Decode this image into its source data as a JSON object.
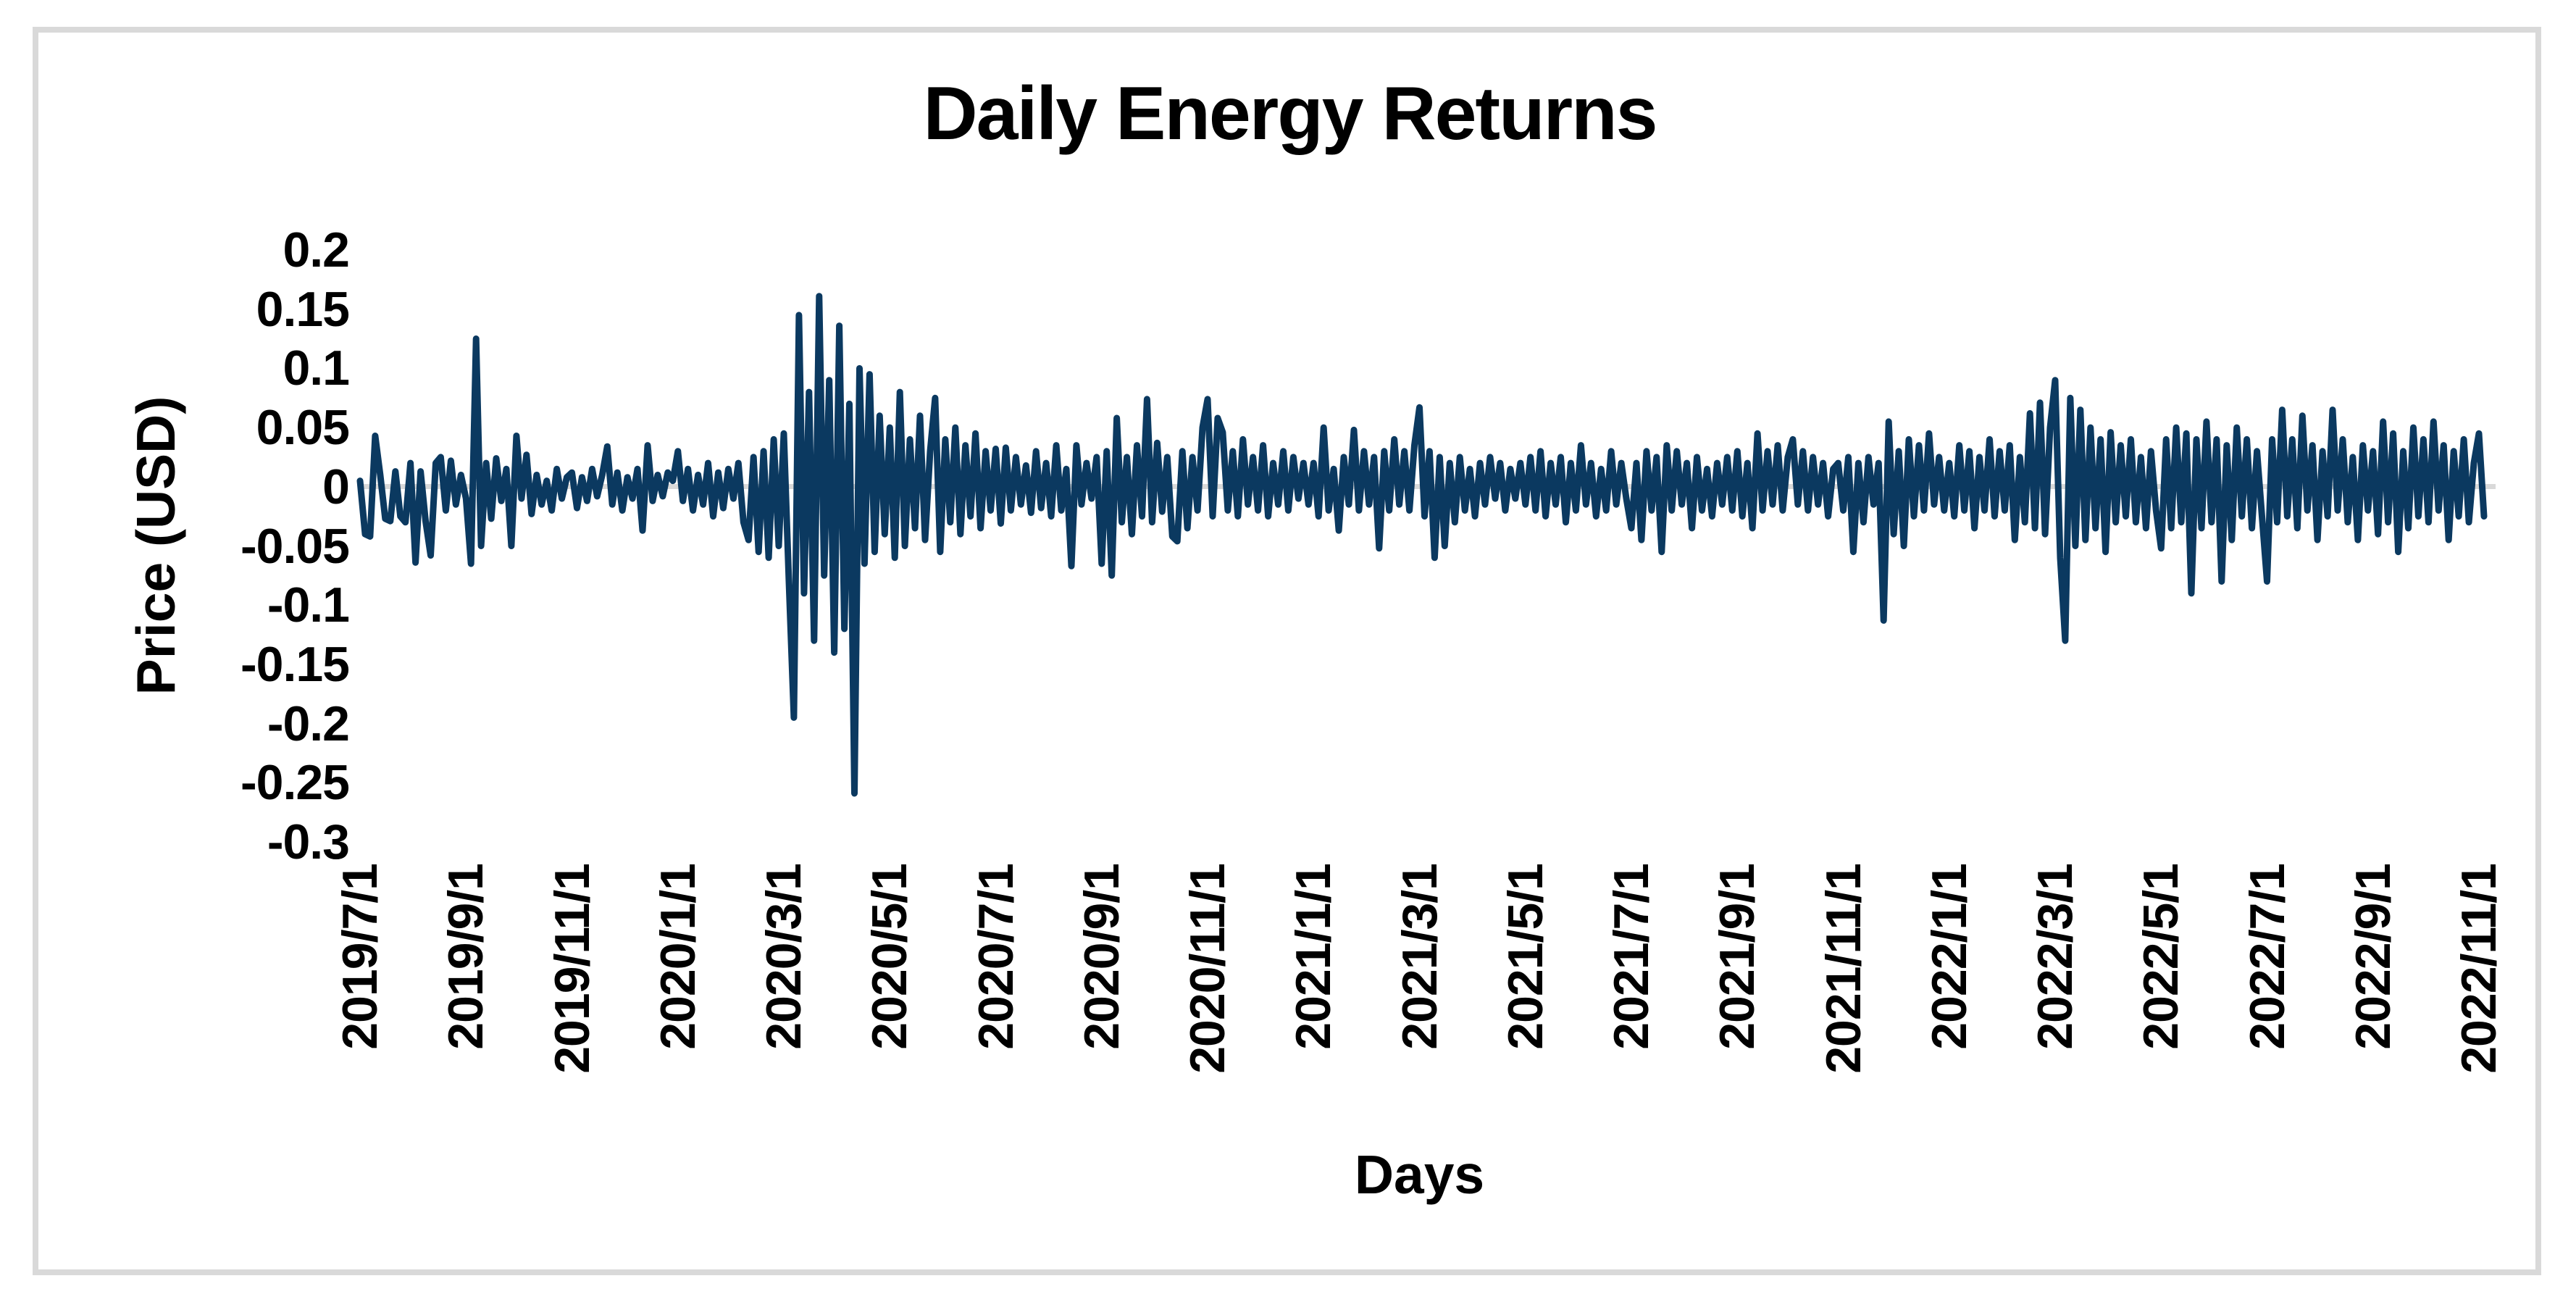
{
  "chart": {
    "title": "Daily Energy Returns",
    "x_axis_title": "Days",
    "y_axis_title": "Price (USD)"
  },
  "colors": {
    "series_line": "#0B3960",
    "zero_gridline": "#D9D9D9",
    "frame_border": "#D9D9D9",
    "background": "#FFFFFF",
    "text": "#000000"
  },
  "chart_data": {
    "type": "line",
    "title": "Daily Energy Returns",
    "xlabel": "Days",
    "ylabel": "Price (USD)",
    "x_start": "2019/7/1",
    "x_end": "2022/11/1",
    "ylim": [
      -0.3,
      0.2
    ],
    "ytick_step": 0.05,
    "ytick_labels": [
      "0.2",
      "0.15",
      "0.1",
      "0.05",
      "0",
      "-0.05",
      "-0.1",
      "-0.15",
      "-0.2",
      "-0.25",
      "-0.3"
    ],
    "xtick_labels": [
      "2019/7/1",
      "2019/9/1",
      "2019/11/1",
      "2020/1/1",
      "2020/3/1",
      "2020/5/1",
      "2020/7/1",
      "2020/9/1",
      "2020/11/1",
      "2021/1/1",
      "2021/3/1",
      "2021/5/1",
      "2021/7/1",
      "2021/9/1",
      "2021/11/1",
      "2022/1/1",
      "2022/3/1",
      "2022/5/1",
      "2022/7/1",
      "2022/9/1",
      "2022/11/1"
    ],
    "points_per_xtick_interval": 21,
    "grid": "horizontal zero line only",
    "legend": "none",
    "notable_points": {
      "max": 0.161,
      "max_near": "2020/3",
      "min": -0.259,
      "min_near": "2020/4",
      "spike_2019_9": 0.125,
      "dip_2021_11": -0.113,
      "dip_2022_3": -0.13
    },
    "series": [
      {
        "name": "Daily Energy Returns",
        "color": "#0B3960",
        "values": [
          0.005,
          -0.04,
          -0.042,
          0.043,
          0.01,
          -0.027,
          -0.029,
          0.013,
          -0.025,
          -0.03,
          0.02,
          -0.064,
          0.013,
          -0.029,
          -0.058,
          0.02,
          0.025,
          -0.02,
          0.022,
          -0.015,
          0.01,
          -0.01,
          -0.065,
          0.125,
          -0.05,
          0.02,
          -0.027,
          0.024,
          -0.012,
          0.015,
          -0.05,
          0.043,
          -0.01,
          0.027,
          -0.023,
          0.01,
          -0.015,
          0.005,
          -0.02,
          0.015,
          -0.01,
          0.008,
          0.012,
          -0.018,
          0.008,
          -0.012,
          0.015,
          -0.008,
          0.01,
          0.034,
          -0.015,
          0.012,
          -0.02,
          0.008,
          -0.01,
          0.015,
          -0.037,
          0.035,
          -0.012,
          0.01,
          -0.008,
          0.012,
          0.005,
          0.03,
          -0.012,
          0.015,
          -0.02,
          0.01,
          -0.015,
          0.02,
          -0.025,
          0.012,
          -0.018,
          0.015,
          -0.01,
          0.02,
          -0.03,
          -0.045,
          0.025,
          -0.055,
          0.03,
          -0.06,
          0.04,
          -0.05,
          0.045,
          -0.08,
          -0.195,
          0.145,
          -0.09,
          0.08,
          -0.13,
          0.161,
          -0.075,
          0.09,
          -0.14,
          0.136,
          -0.12,
          0.07,
          -0.259,
          0.1,
          -0.065,
          0.095,
          -0.055,
          0.06,
          -0.04,
          0.05,
          -0.06,
          0.08,
          -0.05,
          0.04,
          -0.035,
          0.06,
          -0.045,
          0.03,
          0.075,
          -0.055,
          0.04,
          -0.03,
          0.05,
          -0.04,
          0.035,
          -0.025,
          0.045,
          -0.035,
          0.03,
          -0.02,
          0.032,
          -0.031,
          0.033,
          -0.02,
          0.025,
          -0.015,
          0.018,
          -0.022,
          0.03,
          -0.018,
          0.02,
          -0.025,
          0.035,
          -0.02,
          0.015,
          -0.067,
          0.035,
          -0.015,
          0.02,
          -0.01,
          0.025,
          -0.065,
          0.03,
          -0.075,
          0.058,
          -0.03,
          0.025,
          -0.04,
          0.035,
          -0.025,
          0.074,
          -0.03,
          0.037,
          -0.021,
          0.025,
          -0.042,
          -0.046,
          0.03,
          -0.035,
          0.025,
          -0.02,
          0.05,
          0.074,
          -0.025,
          0.058,
          0.046,
          -0.02,
          0.03,
          -0.025,
          0.04,
          -0.015,
          0.025,
          -0.02,
          0.035,
          -0.025,
          0.02,
          -0.015,
          0.03,
          -0.02,
          0.025,
          -0.01,
          0.02,
          -0.015,
          0.02,
          -0.025,
          0.05,
          -0.02,
          0.015,
          -0.037,
          0.025,
          -0.015,
          0.048,
          -0.02,
          0.03,
          -0.015,
          0.025,
          -0.052,
          0.03,
          -0.02,
          0.04,
          -0.015,
          0.03,
          -0.02,
          0.035,
          0.067,
          -0.025,
          0.03,
          -0.06,
          0.025,
          -0.05,
          0.02,
          -0.03,
          0.025,
          -0.02,
          0.015,
          -0.025,
          0.02,
          -0.015,
          0.025,
          -0.01,
          0.02,
          -0.02,
          0.015,
          -0.01,
          0.02,
          -0.015,
          0.025,
          -0.02,
          0.03,
          -0.025,
          0.02,
          -0.015,
          0.025,
          -0.03,
          0.02,
          -0.02,
          0.035,
          -0.015,
          0.02,
          -0.025,
          0.015,
          -0.02,
          0.03,
          -0.015,
          0.02,
          -0.01,
          -0.035,
          0.02,
          -0.045,
          0.03,
          -0.02,
          0.025,
          -0.055,
          0.035,
          -0.02,
          0.03,
          -0.015,
          0.02,
          -0.035,
          0.025,
          -0.02,
          0.015,
          -0.025,
          0.02,
          -0.015,
          0.025,
          -0.02,
          0.03,
          -0.025,
          0.02,
          -0.035,
          0.045,
          -0.02,
          0.03,
          -0.015,
          0.035,
          -0.02,
          0.025,
          0.04,
          -0.015,
          0.03,
          -0.02,
          0.025,
          -0.015,
          0.02,
          -0.025,
          0.015,
          0.02,
          -0.02,
          0.025,
          -0.055,
          0.02,
          -0.03,
          0.025,
          -0.015,
          0.02,
          -0.113,
          0.055,
          -0.04,
          0.03,
          -0.05,
          0.04,
          -0.025,
          0.035,
          -0.02,
          0.045,
          -0.015,
          0.025,
          -0.02,
          0.02,
          -0.025,
          0.035,
          -0.02,
          0.03,
          -0.035,
          0.025,
          -0.02,
          0.04,
          -0.025,
          0.03,
          -0.02,
          0.035,
          -0.045,
          0.025,
          -0.03,
          0.062,
          -0.035,
          0.071,
          -0.04,
          0.05,
          0.09,
          -0.06,
          -0.13,
          0.075,
          -0.05,
          0.065,
          -0.045,
          0.05,
          -0.035,
          0.04,
          -0.055,
          0.046,
          -0.03,
          0.035,
          -0.025,
          0.04,
          -0.03,
          0.025,
          -0.035,
          0.03,
          -0.02,
          -0.052,
          0.04,
          -0.035,
          0.05,
          -0.03,
          0.045,
          -0.09,
          0.04,
          -0.035,
          0.055,
          -0.03,
          0.04,
          -0.08,
          0.035,
          -0.045,
          0.05,
          -0.025,
          0.04,
          -0.035,
          0.03,
          -0.025,
          -0.08,
          0.04,
          -0.03,
          0.065,
          -0.025,
          0.04,
          -0.035,
          0.06,
          -0.02,
          0.035,
          -0.045,
          0.03,
          -0.025,
          0.065,
          -0.02,
          0.04,
          -0.03,
          0.025,
          -0.045,
          0.035,
          -0.02,
          0.03,
          -0.04,
          0.055,
          -0.03,
          0.045,
          -0.055,
          0.03,
          -0.035,
          0.05,
          -0.025,
          0.04,
          -0.03,
          0.055,
          -0.02,
          0.035,
          -0.045,
          0.03,
          -0.025,
          0.04,
          -0.03,
          0.02,
          0.045,
          -0.025
        ]
      }
    ]
  }
}
